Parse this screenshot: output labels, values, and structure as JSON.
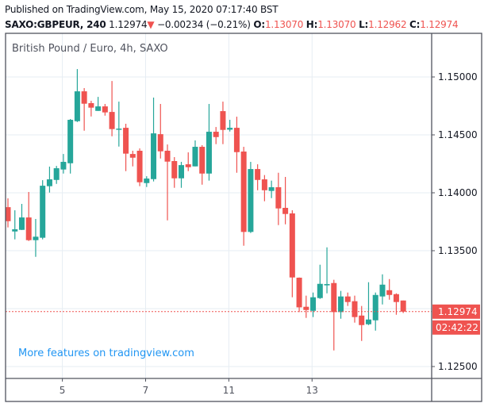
{
  "header": {
    "published": "Published on TradingView.com, May 15, 2020 07:17:40 BST",
    "symbol": "SAXO:GBPEUR, 240",
    "last": "1.12974",
    "change": "−0.00234 (−0.21%)",
    "o_label": "O:",
    "o": "1.13070",
    "h_label": "H:",
    "h": "1.13070",
    "l_label": "L:",
    "l": "1.12962",
    "c_label": "C:",
    "c": "1.12974",
    "direction_icon": "triangle-down-icon"
  },
  "chart_data": {
    "type": "candlestick",
    "title": "British Pound / Euro, 4h, SAXO",
    "watermark_link": "More features on tradingview.com",
    "ylim": [
      1.1232,
      1.153
    ],
    "y_ticks": [
      "1.15000",
      "1.14500",
      "1.14000",
      "1.13500",
      "1.12500"
    ],
    "y_grid": [
      1.15,
      1.145,
      1.14,
      1.135,
      1.13,
      1.125
    ],
    "x_ticks": [
      {
        "label": "5",
        "bar": 8
      },
      {
        "label": "7",
        "bar": 20
      },
      {
        "label": "11",
        "bar": 32
      },
      {
        "label": "13",
        "bar": 44
      }
    ],
    "grid": true,
    "colors": {
      "up": "#26a69a",
      "down": "#ef5350",
      "grid": "#e6edf3",
      "link": "#2196f3"
    },
    "last_price": 1.12974,
    "last_price_label": "1.12974",
    "countdown": "02:42:22",
    "ohlc": [
      [
        1.13876,
        1.13952,
        1.13701,
        1.13755
      ],
      [
        1.13666,
        1.13849,
        1.13598,
        1.13685
      ],
      [
        1.1368,
        1.13904,
        1.13678,
        1.13787
      ],
      [
        1.13787,
        1.14007,
        1.13584,
        1.13591
      ],
      [
        1.13591,
        1.13774,
        1.13447,
        1.13621
      ],
      [
        1.13612,
        1.14109,
        1.13598,
        1.14061
      ],
      [
        1.14057,
        1.14226,
        1.14002,
        1.14116
      ],
      [
        1.14111,
        1.14232,
        1.14077,
        1.14212
      ],
      [
        1.14201,
        1.14335,
        1.14166,
        1.14267
      ],
      [
        1.14255,
        1.14637,
        1.14166,
        1.1463
      ],
      [
        1.14618,
        1.15068,
        1.14611,
        1.14876
      ],
      [
        1.14876,
        1.14904,
        1.14536,
        1.14769
      ],
      [
        1.14774,
        1.14794,
        1.14659,
        1.14735
      ],
      [
        1.14707,
        1.14828,
        1.14707,
        1.14746
      ],
      [
        1.14746,
        1.14767,
        1.14666,
        1.14694
      ],
      [
        1.14698,
        1.14965,
        1.14488,
        1.1455
      ],
      [
        1.14552,
        1.14787,
        1.14399,
        1.14554
      ],
      [
        1.14561,
        1.14596,
        1.14187,
        1.14338
      ],
      [
        1.14335,
        1.14363,
        1.14228,
        1.14303
      ],
      [
        1.14363,
        1.14383,
        1.14057,
        1.14091
      ],
      [
        1.14084,
        1.14143,
        1.1405,
        1.14123
      ],
      [
        1.14118,
        1.14822,
        1.14098,
        1.14513
      ],
      [
        1.14506,
        1.14767,
        1.14296,
        1.14358
      ],
      [
        1.14363,
        1.14417,
        1.13762,
        1.14269
      ],
      [
        1.14274,
        1.14308,
        1.14043,
        1.14125
      ],
      [
        1.14125,
        1.14267,
        1.14043,
        1.14239
      ],
      [
        1.14246,
        1.14349,
        1.14187,
        1.14221
      ],
      [
        1.14228,
        1.14452,
        1.14228,
        1.14397
      ],
      [
        1.14397,
        1.14411,
        1.1407,
        1.14166
      ],
      [
        1.14166,
        1.14767,
        1.14105,
        1.14527
      ],
      [
        1.14527,
        1.14568,
        1.1442,
        1.14481
      ],
      [
        1.14705,
        1.14787,
        1.1442,
        1.14543
      ],
      [
        1.14545,
        1.1463,
        1.14529,
        1.14561
      ],
      [
        1.14561,
        1.14657,
        1.14173,
        1.14351
      ],
      [
        1.14356,
        1.14397,
        1.13543,
        1.13662
      ],
      [
        1.13662,
        1.14267,
        1.13653,
        1.14205
      ],
      [
        1.14205,
        1.14246,
        1.14022,
        1.14111
      ],
      [
        1.14116,
        1.14153,
        1.13927,
        1.14022
      ],
      [
        1.14016,
        1.14105,
        1.13954,
        1.14048
      ],
      [
        1.14048,
        1.14173,
        1.13721,
        1.13865
      ],
      [
        1.1387,
        1.14137,
        1.13728,
        1.13817
      ],
      [
        1.13822,
        1.13849,
        1.13098,
        1.13269
      ],
      [
        1.13267,
        1.13269,
        1.1297,
        1.13011
      ],
      [
        1.13016,
        1.13112,
        1.1292,
        1.12988
      ],
      [
        1.12981,
        1.13139,
        1.12927,
        1.13098
      ],
      [
        1.13091,
        1.13379,
        1.13084,
        1.13214
      ],
      [
        1.13201,
        1.13529,
        1.13132,
        1.13212
      ],
      [
        1.13221,
        1.13249,
        1.12639,
        1.1297
      ],
      [
        1.1297,
        1.13153,
        1.12913,
        1.13105
      ],
      [
        1.13105,
        1.13139,
        1.13023,
        1.13057
      ],
      [
        1.13064,
        1.13112,
        1.12879,
        1.12927
      ],
      [
        1.1294,
        1.13023,
        1.12721,
        1.12858
      ],
      [
        1.12865,
        1.13228,
        1.12858,
        1.12906
      ],
      [
        1.12899,
        1.13139,
        1.1281,
        1.13118
      ],
      [
        1.13105,
        1.13296,
        1.13036,
        1.13207
      ],
      [
        1.13159,
        1.13255,
        1.13077,
        1.13118
      ],
      [
        1.13125,
        1.13132,
        1.12947,
        1.13057
      ],
      [
        1.1307,
        1.1307,
        1.12962,
        1.12974
      ]
    ]
  }
}
